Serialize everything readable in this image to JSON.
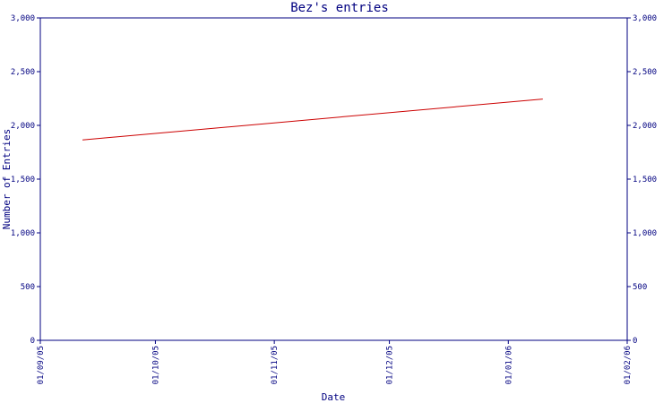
{
  "chart_data": {
    "type": "line",
    "title": "Bez's entries",
    "xlabel": "Date",
    "ylabel": "Number of Entries",
    "ylim": [
      0,
      3000
    ],
    "yticks": [
      "0",
      "500",
      "1,000",
      "1,500",
      "2,000",
      "2,500",
      "3,000"
    ],
    "ytick_values": [
      0,
      500,
      1000,
      1500,
      2000,
      2500,
      3000
    ],
    "xlim": [
      "2005-09-01",
      "2006-02-01"
    ],
    "xtick_dates": [
      "2005-09-01",
      "2005-10-01",
      "2005-11-01",
      "2005-12-01",
      "2006-01-01",
      "2006-02-01"
    ],
    "xticks": [
      "01/09/05",
      "01/10/05",
      "01/11/05",
      "01/12/05",
      "01/01/06",
      "01/02/06"
    ],
    "grid": false,
    "series": [
      {
        "x": [
          "2005-09-12",
          "2006-01-10"
        ],
        "values": [
          1865,
          2245
        ],
        "color": "#cc0000"
      }
    ],
    "axis_color": "#000080"
  }
}
